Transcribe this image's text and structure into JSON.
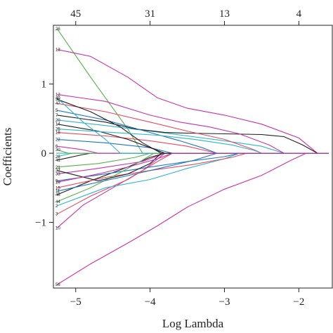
{
  "chart_data": {
    "type": "line",
    "title": "",
    "xlabel": "Log Lambda",
    "ylabel": "Coefficients",
    "xlim": [
      -5.3,
      -1.55
    ],
    "ylim": [
      -1.95,
      1.85
    ],
    "grid": false,
    "legend": "none",
    "x_ticks": [
      -5,
      -4,
      -3,
      -2
    ],
    "x_tick_labels": [
      "−5",
      "−4",
      "−3",
      "−2"
    ],
    "y_ticks": [
      -1,
      0,
      1
    ],
    "y_tick_labels": [
      "−1",
      "0",
      "1"
    ],
    "top_ticks": [
      -5.0,
      -4.0,
      -3.0,
      -2.0
    ],
    "top_tick_labels": [
      "45",
      "31",
      "13",
      "4"
    ],
    "series": [
      {
        "label": "26",
        "color": "#55b04a",
        "points": [
          [
            -5.25,
            1.8
          ],
          [
            -4.8,
            1.1
          ],
          [
            -4.3,
            0.35
          ],
          [
            -4.1,
            0.0
          ]
        ]
      },
      {
        "label": "13",
        "color": "#c833a6",
        "points": [
          [
            -5.25,
            1.5
          ],
          [
            -4.8,
            1.4
          ],
          [
            -4.3,
            1.1
          ],
          [
            -3.9,
            0.8
          ],
          [
            -3.5,
            0.65
          ],
          [
            -3.0,
            0.55
          ],
          [
            -2.5,
            0.42
          ],
          [
            -2.0,
            0.22
          ],
          [
            -1.75,
            0.0
          ]
        ]
      },
      {
        "label": "56",
        "color": "#c833a6",
        "points": [
          [
            -5.25,
            -1.9
          ],
          [
            -4.8,
            -1.6
          ],
          [
            -4.3,
            -1.3
          ],
          [
            -3.9,
            -1.05
          ],
          [
            -3.5,
            -0.78
          ],
          [
            -3.0,
            -0.52
          ],
          [
            -2.5,
            -0.32
          ],
          [
            -2.1,
            -0.1
          ],
          [
            -1.9,
            0.0
          ]
        ]
      },
      {
        "label": "10",
        "color": "#c833a6",
        "points": [
          [
            -5.25,
            -1.08
          ],
          [
            -4.9,
            -0.75
          ],
          [
            -4.5,
            -0.5
          ],
          [
            -4.1,
            -0.25
          ],
          [
            -3.8,
            0.0
          ]
        ]
      },
      {
        "label": "3",
        "color": "#e84a5f",
        "points": [
          [
            -5.25,
            -0.88
          ],
          [
            -4.8,
            -0.62
          ],
          [
            -4.3,
            -0.38
          ],
          [
            -3.9,
            -0.12
          ],
          [
            -3.7,
            0.0
          ]
        ]
      },
      {
        "label": "2",
        "color": "#2fb5c8",
        "points": [
          [
            -5.25,
            -0.76
          ],
          [
            -4.6,
            -0.5
          ],
          [
            -4.0,
            -0.38
          ],
          [
            -3.5,
            -0.22
          ],
          [
            -3.0,
            -0.08
          ],
          [
            -2.8,
            0.0
          ]
        ]
      },
      {
        "label": "48",
        "color": "#1c1c1c",
        "points": [
          [
            -5.25,
            -0.6
          ],
          [
            -4.8,
            -0.4
          ],
          [
            -4.3,
            -0.2
          ],
          [
            -4.0,
            -0.06
          ],
          [
            -3.8,
            0.0
          ]
        ]
      },
      {
        "label": "15",
        "color": "#e84a5f",
        "points": [
          [
            -5.25,
            -0.5
          ],
          [
            -4.6,
            -0.35
          ],
          [
            -4.0,
            -0.25
          ],
          [
            -3.4,
            -0.16
          ],
          [
            -2.9,
            -0.06
          ],
          [
            -2.7,
            0.0
          ]
        ]
      },
      {
        "label": "9",
        "color": "#2274c6",
        "points": [
          [
            -5.25,
            -0.4
          ],
          [
            -4.6,
            -0.3
          ],
          [
            -4.0,
            -0.2
          ],
          [
            -3.5,
            -0.12
          ],
          [
            -3.0,
            -0.05
          ],
          [
            -2.8,
            0.0
          ]
        ]
      },
      {
        "label": "33",
        "color": "#c833a6",
        "points": [
          [
            -5.25,
            -0.3
          ],
          [
            -4.7,
            -0.22
          ],
          [
            -4.1,
            -0.12
          ],
          [
            -3.8,
            0.0
          ]
        ]
      },
      {
        "label": "21",
        "color": "#55b04a",
        "points": [
          [
            -5.25,
            -0.2
          ],
          [
            -4.7,
            -0.15
          ],
          [
            -4.2,
            -0.06
          ],
          [
            -4.0,
            0.0
          ]
        ]
      },
      {
        "label": "41",
        "color": "#1c1c1c",
        "points": [
          [
            -5.25,
            -0.1
          ],
          [
            -4.9,
            -0.02
          ],
          [
            -4.8,
            0.0
          ]
        ]
      },
      {
        "label": "28",
        "color": "#2fb5c8",
        "points": [
          [
            -5.25,
            -0.05
          ],
          [
            -5.05,
            0.0
          ]
        ]
      },
      {
        "label": "30",
        "color": "#55b04a",
        "points": [
          [
            -5.25,
            0.05
          ],
          [
            -5.1,
            0.0
          ]
        ]
      },
      {
        "label": "6",
        "color": "#c833a6",
        "points": [
          [
            -5.25,
            0.1
          ],
          [
            -4.9,
            0.05
          ],
          [
            -4.7,
            0.0
          ]
        ]
      },
      {
        "label": "22",
        "color": "#2274c6",
        "points": [
          [
            -5.25,
            0.2
          ],
          [
            -4.6,
            0.15
          ],
          [
            -4.0,
            0.08
          ],
          [
            -3.7,
            0.0
          ]
        ]
      },
      {
        "label": "18",
        "color": "#e84a5f",
        "points": [
          [
            -5.25,
            0.3
          ],
          [
            -4.6,
            0.25
          ],
          [
            -4.0,
            0.18
          ],
          [
            -3.5,
            0.1
          ],
          [
            -3.1,
            0.0
          ]
        ]
      },
      {
        "label": "14",
        "color": "#1c1c1c",
        "points": [
          [
            -5.25,
            0.42
          ],
          [
            -4.7,
            0.32
          ],
          [
            -4.3,
            0.2
          ],
          [
            -4.0,
            0.08
          ],
          [
            -3.8,
            0.0
          ]
        ]
      },
      {
        "label": "20",
        "color": "#2fb5c8",
        "points": [
          [
            -5.25,
            0.48
          ],
          [
            -4.6,
            0.4
          ],
          [
            -4.0,
            0.32
          ],
          [
            -3.5,
            0.25
          ],
          [
            -3.0,
            0.18
          ],
          [
            -2.5,
            0.1
          ],
          [
            -2.2,
            0.0
          ]
        ]
      },
      {
        "label": "7",
        "color": "#1c1c1c",
        "points": [
          [
            -5.25,
            0.55
          ],
          [
            -4.6,
            0.45
          ],
          [
            -4.2,
            0.35
          ],
          [
            -3.8,
            0.3
          ],
          [
            -3.5,
            0.29
          ],
          [
            -3.0,
            0.28
          ],
          [
            -2.5,
            0.27
          ],
          [
            -2.2,
            0.24
          ],
          [
            -1.95,
            0.12
          ],
          [
            -1.75,
            0.0
          ]
        ]
      },
      {
        "label": "5",
        "color": "#2274c6",
        "points": [
          [
            -5.25,
            0.62
          ],
          [
            -4.6,
            0.48
          ],
          [
            -4.0,
            0.3
          ],
          [
            -3.6,
            0.18
          ],
          [
            -3.3,
            0.08
          ],
          [
            -3.1,
            0.0
          ]
        ]
      },
      {
        "label": "47",
        "color": "#e84a5f",
        "points": [
          [
            -5.25,
            0.72
          ],
          [
            -4.6,
            0.6
          ],
          [
            -4.0,
            0.45
          ],
          [
            -3.5,
            0.32
          ],
          [
            -3.0,
            0.2
          ],
          [
            -2.6,
            0.05
          ],
          [
            -2.5,
            0.0
          ]
        ]
      },
      {
        "label": "31",
        "color": "#1c1c1c",
        "points": [
          [
            -5.25,
            0.78
          ],
          [
            -4.8,
            0.6
          ],
          [
            -4.4,
            0.38
          ],
          [
            -4.1,
            0.15
          ],
          [
            -3.85,
            0.0
          ]
        ]
      },
      {
        "label": "12",
        "color": "#c833a6",
        "points": [
          [
            -5.25,
            0.85
          ],
          [
            -4.6,
            0.75
          ],
          [
            -4.0,
            0.55
          ],
          [
            -3.6,
            0.45
          ],
          [
            -3.2,
            0.38
          ],
          [
            -2.8,
            0.28
          ],
          [
            -2.4,
            0.12
          ],
          [
            -2.2,
            0.0
          ]
        ]
      },
      {
        "label": "40",
        "color": "#2fb5c8",
        "points": [
          [
            -5.25,
            0.8
          ],
          [
            -4.9,
            0.45
          ],
          [
            -4.6,
            0.2
          ],
          [
            -4.4,
            0.0
          ]
        ]
      },
      {
        "label": "44",
        "color": "#55b04a",
        "points": [
          [
            -5.25,
            -0.7
          ],
          [
            -4.8,
            -0.5
          ],
          [
            -4.4,
            -0.28
          ],
          [
            -4.1,
            -0.1
          ],
          [
            -3.95,
            0.0
          ]
        ]
      },
      {
        "label": "37",
        "color": "#1c1c1c",
        "points": [
          [
            -5.25,
            -0.25
          ],
          [
            -4.7,
            -0.4
          ],
          [
            -4.3,
            -0.3
          ],
          [
            -4.0,
            -0.15
          ],
          [
            -3.85,
            0.0
          ]
        ]
      },
      {
        "label": "11",
        "color": "#2274c6",
        "points": [
          [
            -5.25,
            -0.55
          ],
          [
            -4.7,
            -0.42
          ],
          [
            -4.2,
            -0.3
          ],
          [
            -3.8,
            -0.2
          ],
          [
            -3.4,
            -0.1
          ],
          [
            -3.1,
            0.0
          ]
        ]
      },
      {
        "label": "25",
        "color": "#2fb5c8",
        "points": [
          [
            -5.25,
            0.35
          ],
          [
            -4.5,
            0.3
          ],
          [
            -3.9,
            0.26
          ],
          [
            -3.4,
            0.2
          ],
          [
            -2.9,
            0.12
          ],
          [
            -2.6,
            0.04
          ],
          [
            -2.5,
            0.0
          ]
        ]
      },
      {
        "label": "19",
        "color": "#c833a6",
        "points": [
          [
            -5.25,
            -0.42
          ],
          [
            -4.7,
            -0.3
          ],
          [
            -4.3,
            -0.2
          ],
          [
            -3.9,
            -0.08
          ],
          [
            -3.7,
            0.0
          ]
        ]
      }
    ]
  }
}
